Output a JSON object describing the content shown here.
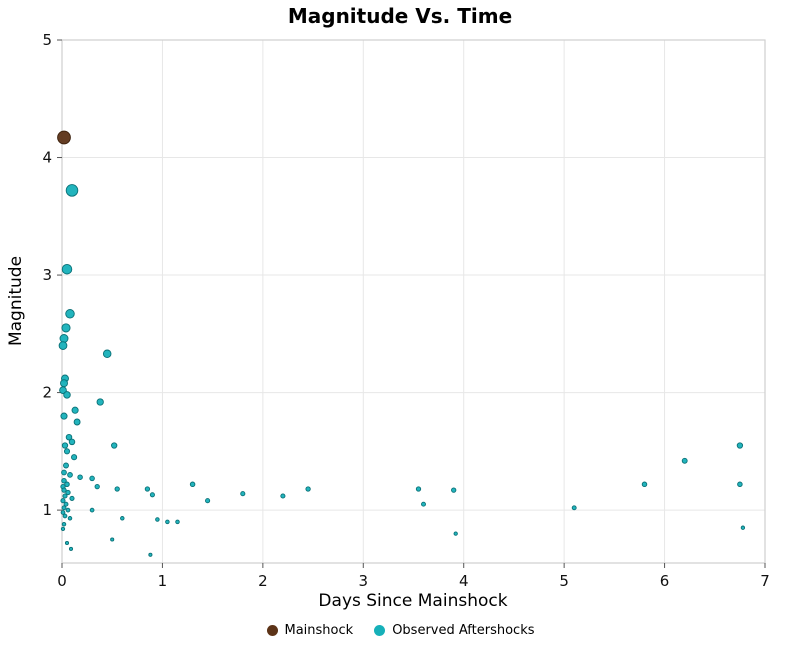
{
  "chart_data": {
    "type": "scatter",
    "title": "Magnitude Vs. Time",
    "xlabel": "Days Since Mainshock",
    "ylabel": "Magnitude",
    "xlim": [
      0,
      7
    ],
    "ylim": [
      0.55,
      5
    ],
    "x_ticks": [
      0,
      1,
      2,
      3,
      4,
      5,
      6,
      7
    ],
    "y_ticks": [
      1,
      2,
      3,
      4,
      5
    ],
    "grid": true,
    "grid_color": "#e7e7e7",
    "border_color": "#cfcfcf",
    "legend_position": "bottom",
    "series": [
      {
        "name": "Mainshock",
        "color": "#5c3317",
        "edge": "#3a1f0b",
        "points": [
          [
            0.02,
            4.17
          ]
        ]
      },
      {
        "name": "Observed Aftershocks",
        "color": "#16b0b9",
        "edge": "#0a7076",
        "points": [
          [
            0.1,
            3.72
          ],
          [
            0.05,
            3.05
          ],
          [
            0.08,
            2.67
          ],
          [
            0.04,
            2.55
          ],
          [
            0.02,
            2.46
          ],
          [
            0.01,
            2.4
          ],
          [
            0.45,
            2.33
          ],
          [
            0.03,
            2.12
          ],
          [
            0.02,
            2.08
          ],
          [
            0.01,
            2.02
          ],
          [
            0.05,
            1.98
          ],
          [
            0.38,
            1.92
          ],
          [
            0.13,
            1.85
          ],
          [
            0.02,
            1.8
          ],
          [
            0.15,
            1.75
          ],
          [
            0.07,
            1.62
          ],
          [
            0.1,
            1.58
          ],
          [
            0.03,
            1.55
          ],
          [
            0.52,
            1.55
          ],
          [
            0.05,
            1.5
          ],
          [
            0.12,
            1.45
          ],
          [
            0.04,
            1.38
          ],
          [
            0.02,
            1.32
          ],
          [
            0.08,
            1.3
          ],
          [
            0.18,
            1.28
          ],
          [
            0.3,
            1.27
          ],
          [
            0.02,
            1.25
          ],
          [
            0.05,
            1.22
          ],
          [
            1.3,
            1.22
          ],
          [
            0.01,
            1.2
          ],
          [
            0.35,
            1.2
          ],
          [
            0.55,
            1.18
          ],
          [
            0.85,
            1.18
          ],
          [
            2.45,
            1.18
          ],
          [
            3.55,
            1.18
          ],
          [
            0.02,
            1.17
          ],
          [
            3.9,
            1.17
          ],
          [
            0.06,
            1.15
          ],
          [
            1.8,
            1.14
          ],
          [
            0.9,
            1.13
          ],
          [
            2.2,
            1.12
          ],
          [
            0.03,
            1.12
          ],
          [
            0.1,
            1.1
          ],
          [
            1.45,
            1.08
          ],
          [
            0.01,
            1.08
          ],
          [
            3.6,
            1.05
          ],
          [
            0.04,
            1.05
          ],
          [
            0.02,
            1.02
          ],
          [
            5.1,
            1.02
          ],
          [
            0.06,
            1.0
          ],
          [
            0.3,
            1.0
          ],
          [
            0.01,
            0.98
          ],
          [
            0.03,
            0.95
          ],
          [
            0.08,
            0.93
          ],
          [
            0.6,
            0.93
          ],
          [
            0.95,
            0.92
          ],
          [
            1.05,
            0.9
          ],
          [
            1.15,
            0.9
          ],
          [
            0.02,
            0.88
          ],
          [
            6.78,
            0.85
          ],
          [
            0.01,
            0.84
          ],
          [
            3.92,
            0.8
          ],
          [
            0.5,
            0.75
          ],
          [
            0.05,
            0.72
          ],
          [
            0.09,
            0.67
          ],
          [
            0.88,
            0.62
          ],
          [
            5.8,
            1.22
          ],
          [
            6.2,
            1.42
          ],
          [
            6.75,
            1.55
          ],
          [
            6.75,
            1.22
          ]
        ]
      }
    ]
  }
}
